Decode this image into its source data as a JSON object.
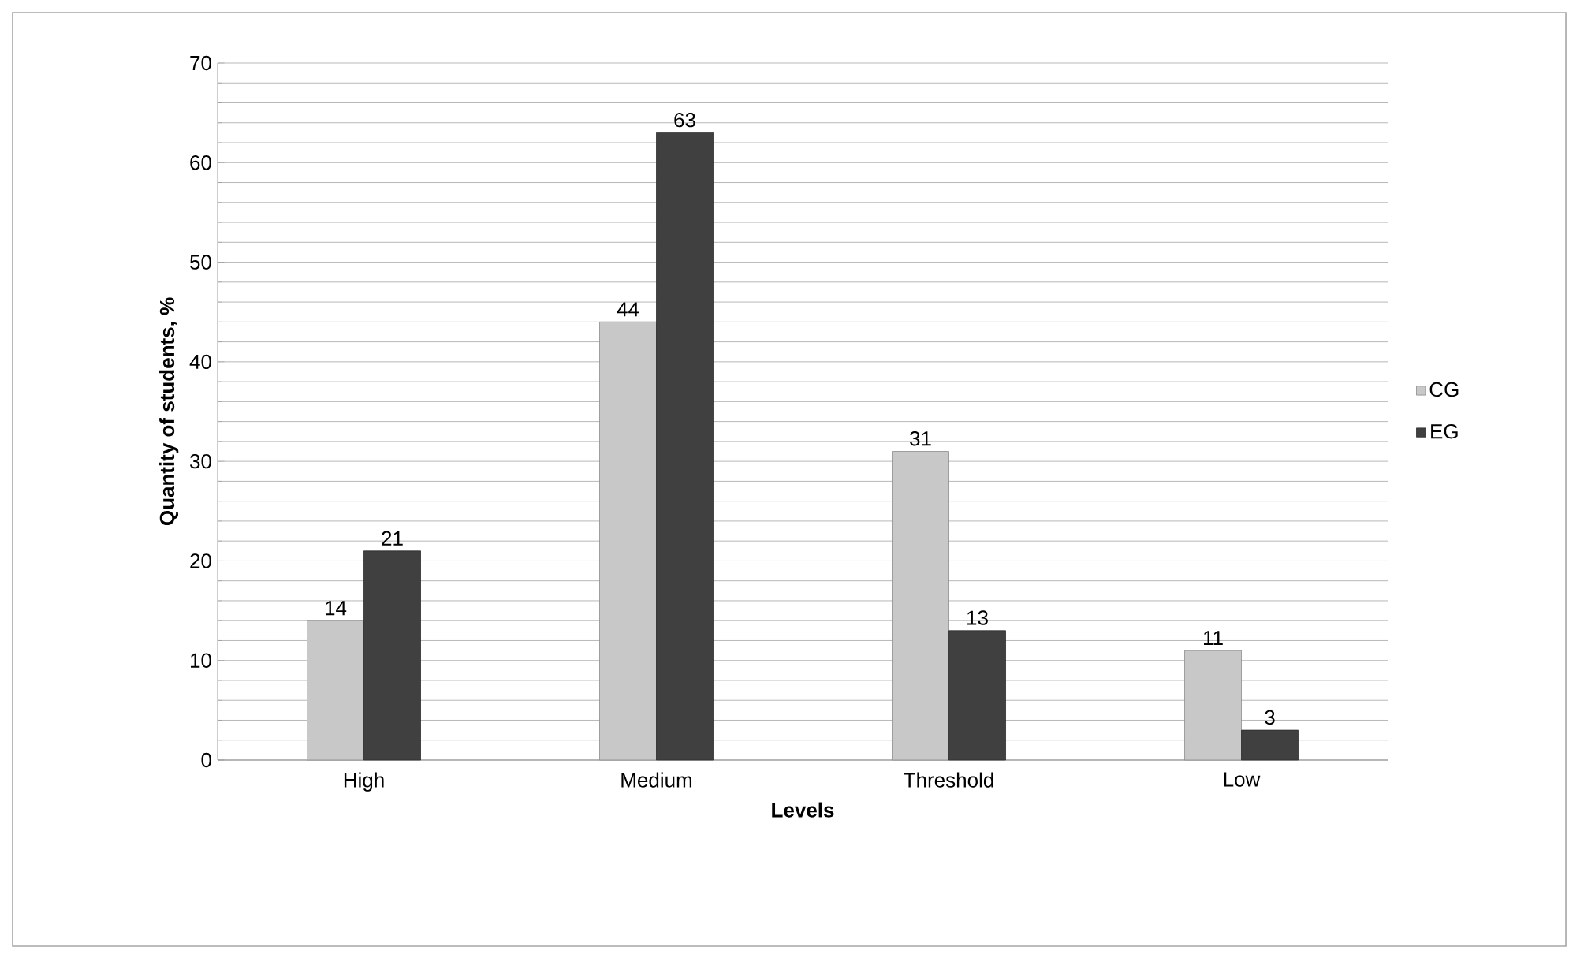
{
  "chart_data": {
    "type": "bar",
    "xlabel": "Levels",
    "ylabel": "Quantity of students, %",
    "categories": [
      "High",
      "Medium",
      "Threshold",
      "Low"
    ],
    "series": [
      {
        "name": "CG",
        "color": "#c8c8c8",
        "values": [
          14,
          44,
          31,
          11
        ]
      },
      {
        "name": "EG",
        "color": "#404040",
        "values": [
          21,
          63,
          13,
          3
        ]
      }
    ],
    "ylim": [
      0,
      70
    ],
    "yticks": [
      0,
      10,
      20,
      30,
      40,
      50,
      60,
      70
    ],
    "grid": "y",
    "legend": "right",
    "data_labels": true
  }
}
